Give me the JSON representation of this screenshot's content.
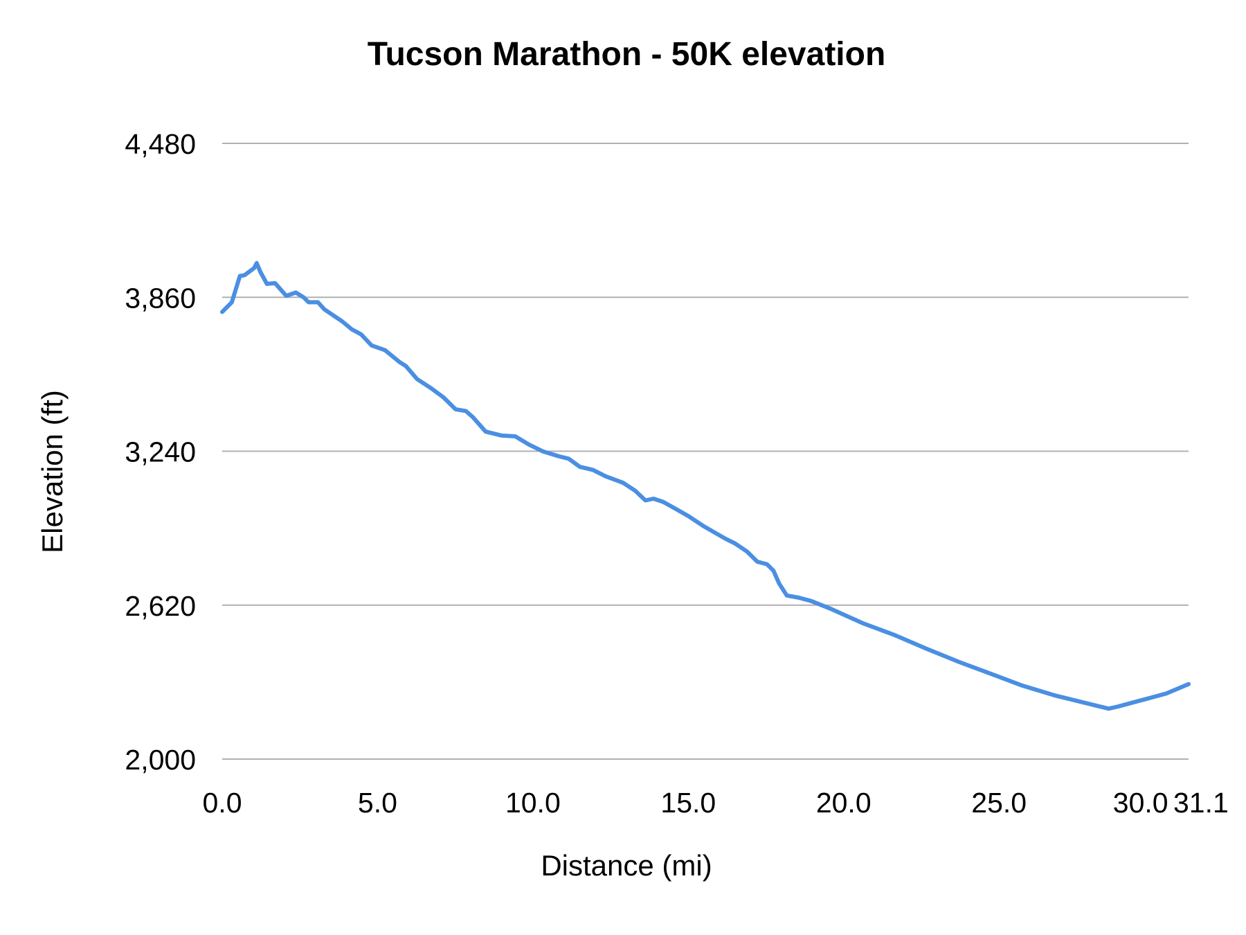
{
  "chart_data": {
    "type": "line",
    "title": "Tucson Marathon - 50K elevation",
    "xlabel": "Distance (mi)",
    "ylabel": "Elevation (ft)",
    "xlim": [
      0,
      31.1
    ],
    "ylim": [
      2000,
      4480
    ],
    "xticks": [
      "0.0",
      "5.0",
      "10.0",
      "15.0",
      "20.0",
      "25.0",
      "30.0",
      "31.1"
    ],
    "xtick_values": [
      0,
      5,
      10,
      15,
      20,
      25,
      30,
      31.1
    ],
    "yticks": [
      "2,000",
      "2,620",
      "3,240",
      "3,860",
      "4,480"
    ],
    "ytick_values": [
      2000,
      2620,
      3240,
      3860,
      4480
    ],
    "grid": "horizontal",
    "legend": "none",
    "line_color": "#4a8fe2",
    "grid_color": "#b0b0b0",
    "x": [
      0,
      0.31,
      0.57,
      0.72,
      1.03,
      1.11,
      1.23,
      1.44,
      1.7,
      2.06,
      2.37,
      2.62,
      2.78,
      3.08,
      3.29,
      3.86,
      4.17,
      4.47,
      4.81,
      5.24,
      5.71,
      5.91,
      6.27,
      6.73,
      7.12,
      7.51,
      7.84,
      8.07,
      8.48,
      9.0,
      9.43,
      9.87,
      10.33,
      10.85,
      11.15,
      11.51,
      11.93,
      12.34,
      12.9,
      13.29,
      13.62,
      13.88,
      14.19,
      14.65,
      15.01,
      15.48,
      16.19,
      16.5,
      16.89,
      17.22,
      17.53,
      17.74,
      17.92,
      18.17,
      18.56,
      18.95,
      19.59,
      20.62,
      21.65,
      22.67,
      23.7,
      24.73,
      25.75,
      26.78,
      27.81,
      28.53,
      28.84,
      29.61,
      30.38,
      31.1
    ],
    "y": [
      3801,
      3840,
      3946,
      3949,
      3978,
      3998,
      3962,
      3914,
      3917,
      3866,
      3879,
      3860,
      3840,
      3840,
      3811,
      3763,
      3731,
      3711,
      3666,
      3647,
      3599,
      3583,
      3531,
      3493,
      3457,
      3409,
      3402,
      3377,
      3319,
      3303,
      3300,
      3267,
      3239,
      3219,
      3210,
      3177,
      3165,
      3139,
      3113,
      3081,
      3042,
      3049,
      3036,
      3004,
      2978,
      2939,
      2888,
      2869,
      2836,
      2795,
      2785,
      2759,
      2708,
      2659,
      2650,
      2637,
      2605,
      2547,
      2499,
      2444,
      2392,
      2344,
      2296,
      2257,
      2225,
      2203,
      2212,
      2238,
      2264,
      2302
    ]
  }
}
